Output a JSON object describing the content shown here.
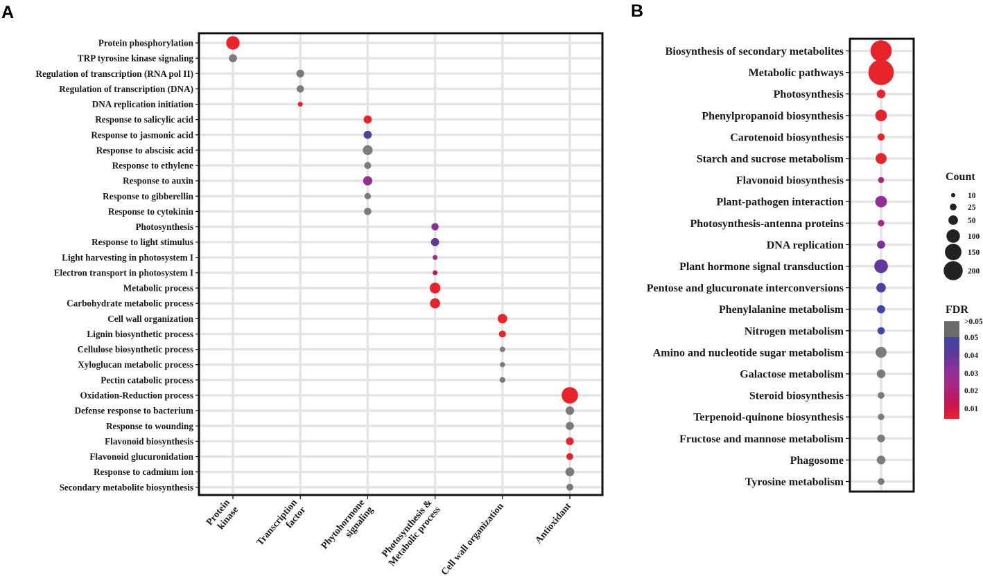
{
  "figure": {
    "panel_a_label": "A",
    "panel_b_label": "B"
  },
  "chart_data": [
    {
      "type": "scatter",
      "panel": "A",
      "title": "",
      "xlabel": "",
      "ylabel": "",
      "categories": [
        "Protein kinase",
        "Transcription factor",
        "Phytohormone signaling",
        "Photosynthesis & Metabolic process",
        "Cell wall organization",
        "Antioxidant"
      ],
      "terms": [
        {
          "term": "Protein phosphorylation",
          "category": 0,
          "count": 60,
          "fdr": 0.005
        },
        {
          "term": "TRP tyrosine kinase signaling",
          "category": 0,
          "count": 22,
          "fdr": null
        },
        {
          "term": "Regulation of transcription (RNA pol II)",
          "category": 1,
          "count": 20,
          "fdr": null
        },
        {
          "term": "Regulation of transcription (DNA)",
          "category": 1,
          "count": 18,
          "fdr": null
        },
        {
          "term": "DNA replication initiation",
          "category": 1,
          "count": 8,
          "fdr": 0.005
        },
        {
          "term": "Response to salicylic acid",
          "category": 2,
          "count": 22,
          "fdr": 0.005
        },
        {
          "term": "Response to jasmonic acid",
          "category": 2,
          "count": 22,
          "fdr": 0.045
        },
        {
          "term": "Response to abscisic acid",
          "category": 2,
          "count": 32,
          "fdr": null
        },
        {
          "term": "Response to ethylene",
          "category": 2,
          "count": 16,
          "fdr": null
        },
        {
          "term": "Response to auxin",
          "category": 2,
          "count": 28,
          "fdr": 0.03
        },
        {
          "term": "Response to gibberellin",
          "category": 2,
          "count": 14,
          "fdr": null
        },
        {
          "term": "Response to cytokinin",
          "category": 2,
          "count": 18,
          "fdr": null
        },
        {
          "term": "Photosynthesis",
          "category": 3,
          "count": 18,
          "fdr": 0.03
        },
        {
          "term": "Response to light stimulus",
          "category": 3,
          "count": 22,
          "fdr": 0.04
        },
        {
          "term": "Light harvesting in photosystem I",
          "category": 3,
          "count": 8,
          "fdr": 0.025
        },
        {
          "term": "Electron transport in photosystem I",
          "category": 3,
          "count": 8,
          "fdr": 0.015
        },
        {
          "term": "Metabolic process",
          "category": 3,
          "count": 38,
          "fdr": 0.005
        },
        {
          "term": "Carbohydrate metabolic process",
          "category": 3,
          "count": 34,
          "fdr": 0.005
        },
        {
          "term": "Cell wall organization",
          "category": 4,
          "count": 30,
          "fdr": 0.005
        },
        {
          "term": "Lignin biosynthetic process",
          "category": 4,
          "count": 16,
          "fdr": 0.005
        },
        {
          "term": "Cellulose biosynthetic process",
          "category": 4,
          "count": 10,
          "fdr": null
        },
        {
          "term": "Xyloglucan metabolic process",
          "category": 4,
          "count": 9,
          "fdr": null
        },
        {
          "term": "Pectin catabolic process",
          "category": 4,
          "count": 11,
          "fdr": null
        },
        {
          "term": "Oxidation-Reduction process",
          "category": 5,
          "count": 90,
          "fdr": 0.005
        },
        {
          "term": "Defense response to bacterium",
          "category": 5,
          "count": 24,
          "fdr": null
        },
        {
          "term": "Response to wounding",
          "category": 5,
          "count": 22,
          "fdr": null
        },
        {
          "term": "Flavonoid biosynthesis",
          "category": 5,
          "count": 20,
          "fdr": 0.005
        },
        {
          "term": "Flavonoid glucuronidation",
          "category": 5,
          "count": 16,
          "fdr": 0.005
        },
        {
          "term": "Response to cadmium ion",
          "category": 5,
          "count": 26,
          "fdr": null
        },
        {
          "term": "Secondary metabolite biosynthesis",
          "category": 5,
          "count": 16,
          "fdr": null
        }
      ]
    },
    {
      "type": "scatter",
      "panel": "B",
      "title": "",
      "xlabel": "",
      "ylabel": "",
      "terms": [
        {
          "term": "Biosynthesis of secondary metabolites",
          "count": 150,
          "fdr": 0.005
        },
        {
          "term": "Metabolic pathways",
          "count": 215,
          "fdr": 0.005
        },
        {
          "term": "Photosynthesis",
          "count": 25,
          "fdr": 0.005
        },
        {
          "term": "Phenylpropanoid biosynthesis",
          "count": 45,
          "fdr": 0.005
        },
        {
          "term": "Carotenoid biosynthesis",
          "count": 17,
          "fdr": 0.005
        },
        {
          "term": "Starch and sucrose metabolism",
          "count": 40,
          "fdr": 0.005
        },
        {
          "term": "Flavonoid biosynthesis",
          "count": 12,
          "fdr": 0.025
        },
        {
          "term": "Plant-pathogen interaction",
          "count": 45,
          "fdr": 0.03
        },
        {
          "term": "Photosynthesis-antenna proteins",
          "count": 14,
          "fdr": 0.025
        },
        {
          "term": "DNA replication",
          "count": 22,
          "fdr": 0.035
        },
        {
          "term": "Plant hormone signal transduction",
          "count": 62,
          "fdr": 0.04
        },
        {
          "term": "Pentose and glucuronate interconversions",
          "count": 30,
          "fdr": 0.045
        },
        {
          "term": "Phenylalanine metabolism",
          "count": 22,
          "fdr": 0.05
        },
        {
          "term": "Nitrogen metabolism",
          "count": 18,
          "fdr": 0.05
        },
        {
          "term": "Amino and nucleotide sugar metabolism",
          "count": 40,
          "fdr": null
        },
        {
          "term": "Galactose metabolism",
          "count": 25,
          "fdr": null
        },
        {
          "term": "Steroid biosynthesis",
          "count": 15,
          "fdr": null
        },
        {
          "term": "Terpenoid-quinone biosynthesis",
          "count": 14,
          "fdr": null
        },
        {
          "term": "Fructose and mannose metabolism",
          "count": 20,
          "fdr": null
        },
        {
          "term": "Phagosome",
          "count": 25,
          "fdr": null
        },
        {
          "term": "Tyrosine metabolism",
          "count": 15,
          "fdr": null
        }
      ],
      "legend": {
        "count_title": "Count",
        "count_values": [
          10,
          25,
          50,
          100,
          150,
          200
        ],
        "count_labels": [
          "10",
          "25",
          "50",
          "100",
          "150",
          "200"
        ],
        "fdr_title": "FDR",
        "fdr_labels": [
          ">0.05",
          "0.05",
          "0.04",
          "0.03",
          "0.02",
          "0.01"
        ],
        "fdr_stops": [
          "#e8232a",
          "#c21555",
          "#a92783",
          "#8b3199",
          "#5c3a9a",
          "#3e47a3"
        ],
        "fdr_na_color": "#6b6b6b",
        "not_significant_color": "#7b7b7b"
      }
    }
  ]
}
